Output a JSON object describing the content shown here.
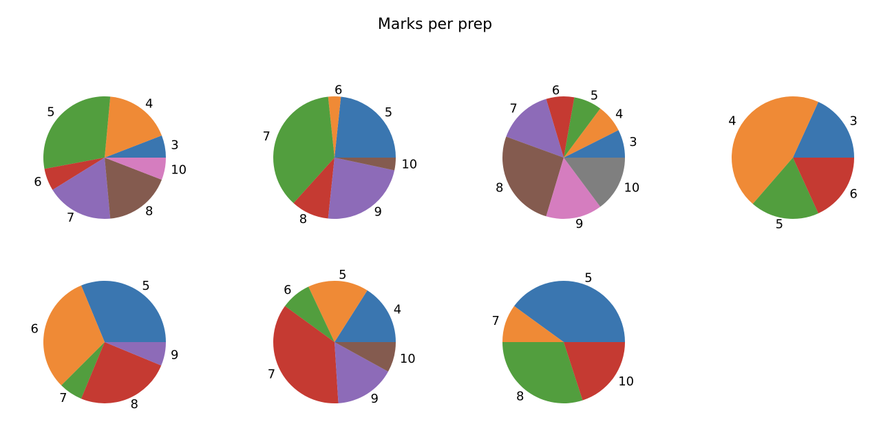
{
  "chart_data": {
    "type": "pie",
    "title": "Marks per prep",
    "colors": [
      "#3a76b0",
      "#ef8a36",
      "#529e3e",
      "#c53a32",
      "#8d6bb8",
      "#845b4f",
      "#d57dbf",
      "#7f7f7f"
    ],
    "start_angle": 0,
    "direction": "counterclockwise",
    "pies": [
      {
        "labels": [
          "3",
          "4",
          "5",
          "6",
          "7",
          "8",
          "10"
        ],
        "values": [
          3,
          9,
          15,
          3,
          9,
          9,
          3
        ]
      },
      {
        "labels": [
          "5",
          "6",
          "7",
          "8",
          "9",
          "10"
        ],
        "values": [
          7,
          1,
          11,
          3,
          7,
          1
        ]
      },
      {
        "labels": [
          "3",
          "4",
          "5",
          "6",
          "7",
          "8",
          "9",
          "10"
        ],
        "values": [
          2,
          2,
          2,
          2,
          4,
          7,
          4,
          4
        ]
      },
      {
        "labels": [
          "3",
          "4",
          "5",
          "6"
        ],
        "values": [
          2,
          5,
          2,
          2
        ]
      },
      {
        "labels": [
          "5",
          "6",
          "7",
          "8",
          "9"
        ],
        "values": [
          5,
          5,
          1,
          4,
          1
        ]
      },
      {
        "labels": [
          "4",
          "5",
          "6",
          "7",
          "9",
          "10"
        ],
        "values": [
          4,
          4,
          2,
          9,
          4,
          2
        ]
      },
      {
        "labels": [
          "5",
          "7",
          "8",
          "10"
        ],
        "values": [
          4,
          1,
          3,
          2
        ]
      }
    ]
  }
}
